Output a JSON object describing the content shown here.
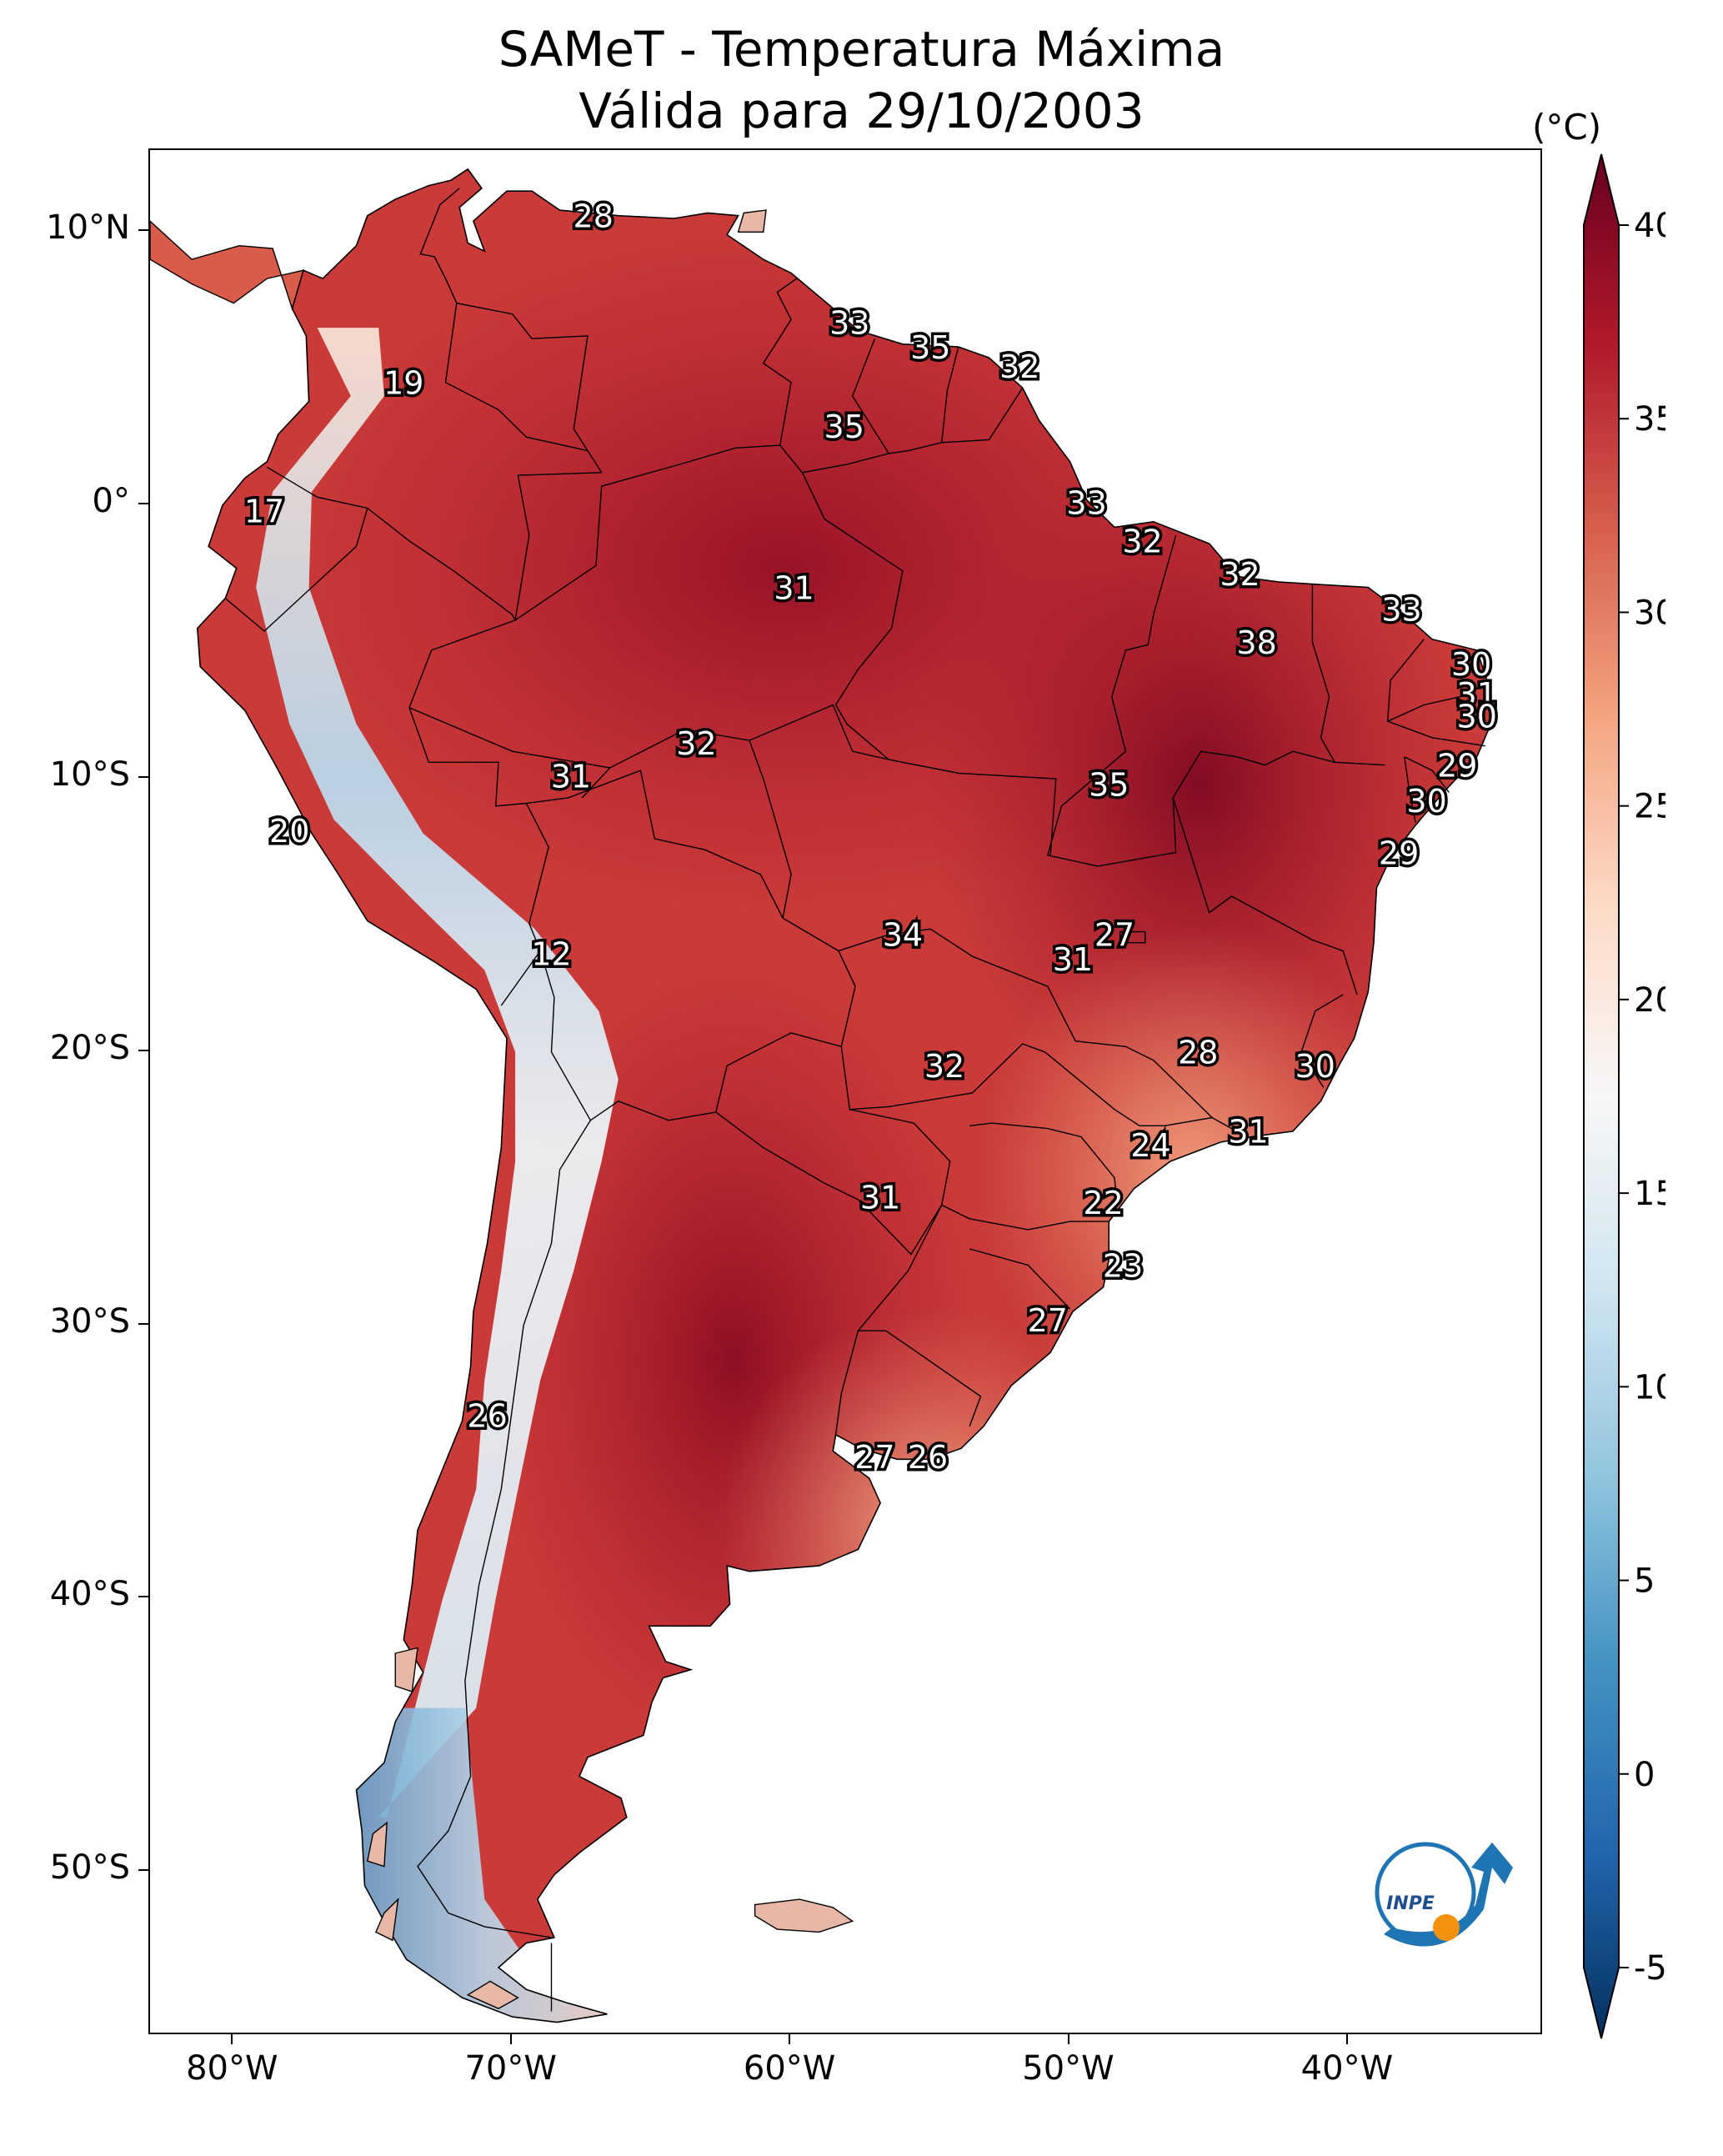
{
  "title": {
    "line1": "SAMeT - Temperatura Máxima",
    "line2": "Válida para 29/10/2003"
  },
  "map": {
    "extent": {
      "lon": [
        -83,
        -33
      ],
      "lat": [
        -56,
        13
      ]
    },
    "x_ticks": [
      {
        "lon": -80,
        "label": "80°W"
      },
      {
        "lon": -70,
        "label": "70°W"
      },
      {
        "lon": -60,
        "label": "60°W"
      },
      {
        "lon": -50,
        "label": "50°W"
      },
      {
        "lon": -40,
        "label": "40°W"
      }
    ],
    "y_ticks": [
      {
        "lat": 10,
        "label": "10°N"
      },
      {
        "lat": 0,
        "label": "0°"
      },
      {
        "lat": -10,
        "label": "10°S"
      },
      {
        "lat": -20,
        "label": "20°S"
      },
      {
        "lat": -30,
        "label": "30°S"
      },
      {
        "lat": -40,
        "label": "40°S"
      },
      {
        "lat": -50,
        "label": "50°S"
      }
    ],
    "logo": "inpe-logo",
    "logo_text": "INPE"
  },
  "colorbar": {
    "unit": "(°C)",
    "min": -7,
    "max": 42,
    "ticks": [
      -5,
      0,
      5,
      10,
      15,
      20,
      25,
      30,
      35,
      40
    ],
    "colors": [
      "#053061",
      "#2166ac",
      "#4393c3",
      "#92c5de",
      "#d1e5f0",
      "#f7f7f7",
      "#fddbc7",
      "#f4a582",
      "#d6604d",
      "#b2182b",
      "#67001f"
    ]
  },
  "chart_data": {
    "type": "heatmap",
    "title": "SAMeT - Temperatura Máxima",
    "subtitle": "Válida para 29/10/2003",
    "value_unit": "°C",
    "contour_labels": [
      {
        "lon": -67.1,
        "lat": 10.5,
        "value": 28
      },
      {
        "lon": -73.9,
        "lat": 4.4,
        "value": 19
      },
      {
        "lon": -57.9,
        "lat": 6.6,
        "value": 33
      },
      {
        "lon": -55.0,
        "lat": 5.7,
        "value": 35
      },
      {
        "lon": -51.8,
        "lat": 5.0,
        "value": 32
      },
      {
        "lon": -58.1,
        "lat": 2.8,
        "value": 35
      },
      {
        "lon": -78.9,
        "lat": -0.3,
        "value": 17
      },
      {
        "lon": -49.4,
        "lat": 0.0,
        "value": 33
      },
      {
        "lon": -47.4,
        "lat": -1.4,
        "value": 32
      },
      {
        "lon": -43.9,
        "lat": -2.6,
        "value": 32
      },
      {
        "lon": -59.9,
        "lat": -3.1,
        "value": 31
      },
      {
        "lon": -38.1,
        "lat": -3.9,
        "value": 33
      },
      {
        "lon": -43.3,
        "lat": -5.1,
        "value": 38
      },
      {
        "lon": -35.6,
        "lat": -5.9,
        "value": 30
      },
      {
        "lon": -35.4,
        "lat": -7.0,
        "value": 31
      },
      {
        "lon": -35.4,
        "lat": -7.8,
        "value": 30
      },
      {
        "lon": -63.4,
        "lat": -8.8,
        "value": 32
      },
      {
        "lon": -36.1,
        "lat": -9.6,
        "value": 29
      },
      {
        "lon": -67.9,
        "lat": -10.0,
        "value": 31
      },
      {
        "lon": -48.6,
        "lat": -10.3,
        "value": 35
      },
      {
        "lon": -37.2,
        "lat": -10.9,
        "value": 30
      },
      {
        "lon": -38.2,
        "lat": -12.8,
        "value": 29
      },
      {
        "lon": -78.0,
        "lat": -12.0,
        "value": 20
      },
      {
        "lon": -48.4,
        "lat": -15.8,
        "value": 27
      },
      {
        "lon": -56.0,
        "lat": -15.8,
        "value": 34
      },
      {
        "lon": -49.9,
        "lat": -16.7,
        "value": 31
      },
      {
        "lon": -68.6,
        "lat": -16.5,
        "value": 12
      },
      {
        "lon": -45.4,
        "lat": -20.1,
        "value": 28
      },
      {
        "lon": -54.5,
        "lat": -20.6,
        "value": 32
      },
      {
        "lon": -41.2,
        "lat": -20.6,
        "value": 30
      },
      {
        "lon": -43.6,
        "lat": -23.0,
        "value": 31
      },
      {
        "lon": -47.1,
        "lat": -23.5,
        "value": 24
      },
      {
        "lon": -56.8,
        "lat": -25.4,
        "value": 31
      },
      {
        "lon": -48.8,
        "lat": -25.6,
        "value": 22
      },
      {
        "lon": -48.1,
        "lat": -27.9,
        "value": 23
      },
      {
        "lon": -50.8,
        "lat": -29.9,
        "value": 27
      },
      {
        "lon": -70.9,
        "lat": -33.4,
        "value": 26
      },
      {
        "lon": -57.0,
        "lat": -34.9,
        "value": 27
      },
      {
        "lon": -55.1,
        "lat": -34.9,
        "value": 26
      }
    ]
  }
}
